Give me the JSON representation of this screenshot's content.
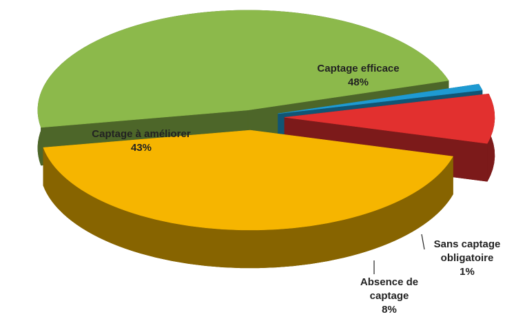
{
  "chart_data": {
    "type": "pie3d",
    "categories": [
      "Captage efficace",
      "Sans captage obligatoire",
      "Absence de captage",
      "Captage à améliorer"
    ],
    "values": [
      48,
      1,
      8,
      43
    ],
    "value_labels": [
      "48%",
      "1%",
      "8%",
      "43%"
    ],
    "colors": [
      "#8cb94b",
      "#1e9ad2",
      "#e2302f",
      "#f6b500"
    ]
  }
}
